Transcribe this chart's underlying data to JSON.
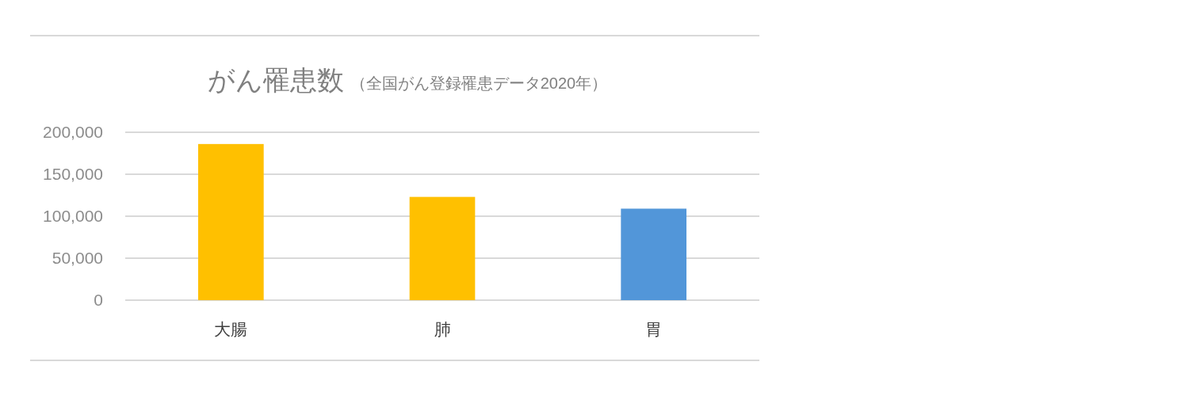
{
  "chart_data": {
    "type": "bar",
    "title": "がん罹患数",
    "subtitle": "（全国がん登録罹患データ2020年）",
    "categories": [
      "大腸",
      "肺",
      "胃"
    ],
    "values": [
      186000,
      123000,
      109000
    ],
    "colors": [
      "#ffc000",
      "#ffc000",
      "#5296d9"
    ],
    "ylim": [
      0,
      200000
    ],
    "yticks": [
      {
        "value": 0,
        "label": "0"
      },
      {
        "value": 50000,
        "label": "50,000"
      },
      {
        "value": 100000,
        "label": "100,000"
      },
      {
        "value": 150000,
        "label": "150,000"
      },
      {
        "value": 200000,
        "label": "200,000"
      }
    ],
    "grid": "y"
  }
}
